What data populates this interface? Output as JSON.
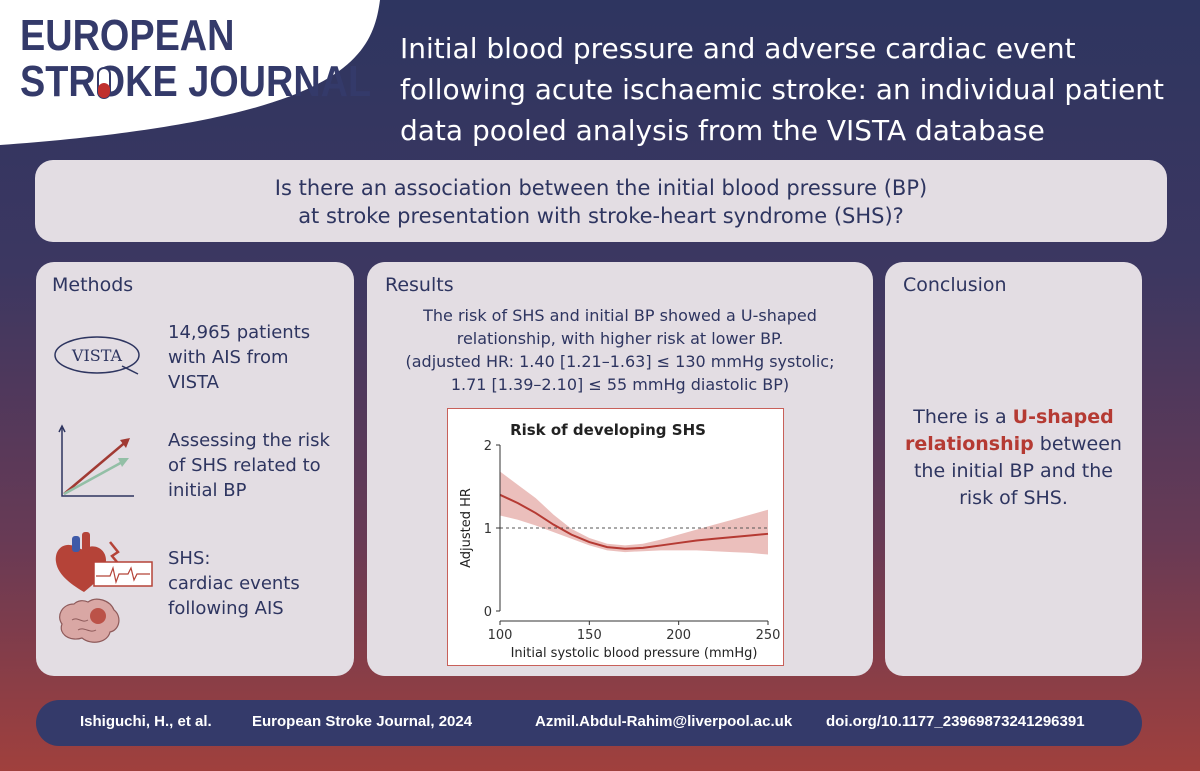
{
  "journal": {
    "line1": "EUROPEAN",
    "line2": "STROKE JOURNAL"
  },
  "title": "Initial blood pressure and adverse cardiac event following acute ischaemic stroke: an individual patient data pooled analysis from the VISTA database",
  "question": {
    "line1": "Is there an association between the initial blood pressure (BP)",
    "line2": "at stroke presentation with stroke-heart syndrome (SHS)?"
  },
  "methods": {
    "heading": "Methods",
    "item1": {
      "lines": [
        "14,965 patients",
        "with AIS from",
        "VISTA"
      ],
      "logo_text": "VISTA"
    },
    "item2": {
      "lines": [
        "Assessing the risk",
        "of SHS related to",
        "initial BP"
      ]
    },
    "item3": {
      "lines": [
        "SHS:",
        "cardiac events",
        "following AIS"
      ]
    }
  },
  "results": {
    "heading": "Results",
    "lines": [
      "The risk of SHS and initial BP showed a U-shaped",
      "relationship, with higher risk at lower BP.",
      "(adjusted HR: 1.40 [1.21–1.63] ≤ 130 mmHg systolic;",
      "1.71 [1.39–2.10] ≤ 55 mmHg diastolic BP)"
    ]
  },
  "conclusion": {
    "heading": "Conclusion",
    "pre": "There is a ",
    "highlight": "U-shaped relationship",
    "post": " between the initial BP and the risk of SHS."
  },
  "footer": {
    "authors": "Ishiguchi, H., et al.",
    "citation": "European Stroke Journal, 2024",
    "email": "Azmil.Abdul-Rahim@liverpool.ac.uk",
    "doi": "doi.org/10.1177_23969873241296391"
  },
  "colors": {
    "navy": "#2e3560",
    "accent_red": "#b53a33",
    "panel": "#e3dde3",
    "curve": "#b53a33",
    "band": "#e8b4b0"
  },
  "chart_data": {
    "type": "line",
    "title": "Risk of developing SHS",
    "xlabel": "Initial systolic blood pressure (mmHg)",
    "ylabel": "Adjusted HR",
    "xlim": [
      100,
      250
    ],
    "ylim": [
      0,
      2
    ],
    "xticks": [
      100,
      150,
      200,
      250
    ],
    "yticks": [
      0,
      1,
      2
    ],
    "reference_line": 1,
    "series": [
      {
        "name": "Adjusted HR",
        "x": [
          100,
          110,
          120,
          130,
          140,
          150,
          160,
          170,
          180,
          190,
          200,
          210,
          220,
          230,
          240,
          250
        ],
        "y": [
          1.4,
          1.3,
          1.18,
          1.04,
          0.92,
          0.83,
          0.77,
          0.75,
          0.76,
          0.79,
          0.82,
          0.85,
          0.87,
          0.89,
          0.91,
          0.93
        ],
        "lower": [
          1.15,
          1.1,
          1.03,
          0.95,
          0.87,
          0.79,
          0.73,
          0.71,
          0.72,
          0.73,
          0.73,
          0.73,
          0.72,
          0.71,
          0.7,
          0.68
        ],
        "upper": [
          1.68,
          1.52,
          1.36,
          1.16,
          0.99,
          0.88,
          0.81,
          0.79,
          0.81,
          0.86,
          0.92,
          0.98,
          1.04,
          1.1,
          1.16,
          1.22
        ]
      }
    ]
  }
}
